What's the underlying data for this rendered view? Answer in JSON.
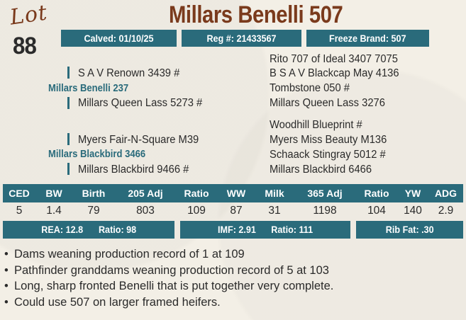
{
  "lot": {
    "word": "Lot",
    "number": "88"
  },
  "title": "Millars Benelli 507",
  "info": {
    "calved": "Calved: 01/10/25",
    "reg": "Reg #: 21433567",
    "freeze": "Freeze Brand: 507"
  },
  "pedigree": {
    "sire": "Millars Benelli 237",
    "sire_sire": "S A V Renown 3439 #",
    "sire_dam": "Millars Queen Lass 5273 #",
    "sss": "Rito 707 of Ideal 3407 7075",
    "ssd": "B S A V Blackcap May 4136",
    "sds": "Tombstone 050 #",
    "sdd": "Millars Queen Lass 3276",
    "dam": "Millars Blackbird 3466",
    "dam_sire": "Myers Fair-N-Square M39",
    "dam_dam": "Millars Blackbird 9466 #",
    "dss": "Woodhill Blueprint #",
    "dsd": "Myers Miss Beauty M136",
    "dds": "Schaack Stingray 5012 #",
    "ddd": "Millars Blackbird 6466"
  },
  "epd": {
    "headers": [
      "CED",
      "BW",
      "Birth",
      "205 Adj",
      "Ratio",
      "WW",
      "Milk",
      "365 Adj",
      "Ratio",
      "YW",
      "ADG"
    ],
    "values": [
      "5",
      "1.4",
      "79",
      "803",
      "109",
      "87",
      "31",
      "1198",
      "104",
      "140",
      "2.9"
    ]
  },
  "carcass": {
    "rea": "REA: 12.8",
    "rea_ratio": "Ratio: 98",
    "imf": "IMF: 2.91",
    "imf_ratio": "Ratio: 111",
    "rib_fat": "Rib Fat: .30"
  },
  "notes": [
    "Dams weaning production record of 1 at 109",
    "Pathfinder granddams weaning production record of 5 at 103",
    "Long, sharp fronted Benelli that is put together very complete.",
    "Could use 507 on larger framed heifers."
  ],
  "colors": {
    "teal": "#2a6b7b",
    "brown": "#7a3a1c"
  }
}
